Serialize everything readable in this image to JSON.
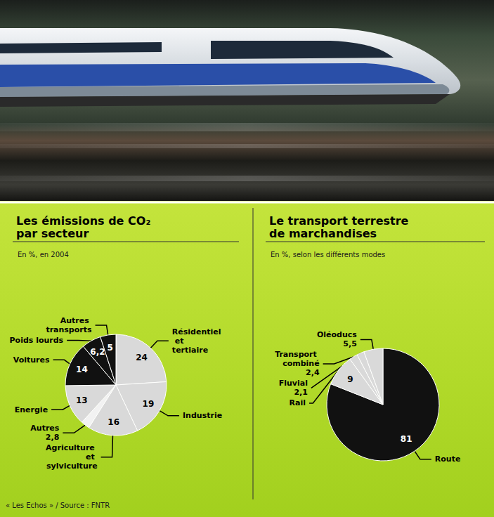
{
  "chart_data": [
    {
      "type": "pie",
      "title": "Les émissions de CO₂ par secteur",
      "subtitle": "En %, en 2004",
      "categories": [
        "Résidentiel et tertiaire",
        "Industrie",
        "Agriculture et sylviculture",
        "Autres",
        "Energie",
        "Voitures",
        "Poids lourds",
        "Autres transports"
      ],
      "values": [
        24,
        19,
        16,
        2.8,
        13,
        14,
        6.2,
        5
      ],
      "value_labels": [
        "24",
        "19",
        "16",
        "2,8",
        "13",
        "14",
        "6,2",
        "5"
      ],
      "colors": [
        "#d9d9d9",
        "#d9d9d9",
        "#d9d9d9",
        "#f2f2f2",
        "#d9d9d9",
        "#111111",
        "#111111",
        "#111111"
      ],
      "data_labels": true
    },
    {
      "type": "pie",
      "title": "Le transport terrestre de marchandises",
      "subtitle": "En %, selon les différents modes",
      "categories": [
        "Route",
        "Rail",
        "Transport combiné",
        "Fluvial",
        "Oléoducs"
      ],
      "values": [
        81,
        9,
        2.4,
        2.1,
        5.5
      ],
      "value_labels": [
        "81",
        "9",
        "2,4",
        "2,1",
        "5,5"
      ],
      "colors": [
        "#111111",
        "#d9d9d9",
        "#d9d9d9",
        "#d9d9d9",
        "#d9d9d9"
      ],
      "data_labels": true
    }
  ],
  "source": "« Les Echos » / Source : FNTR"
}
